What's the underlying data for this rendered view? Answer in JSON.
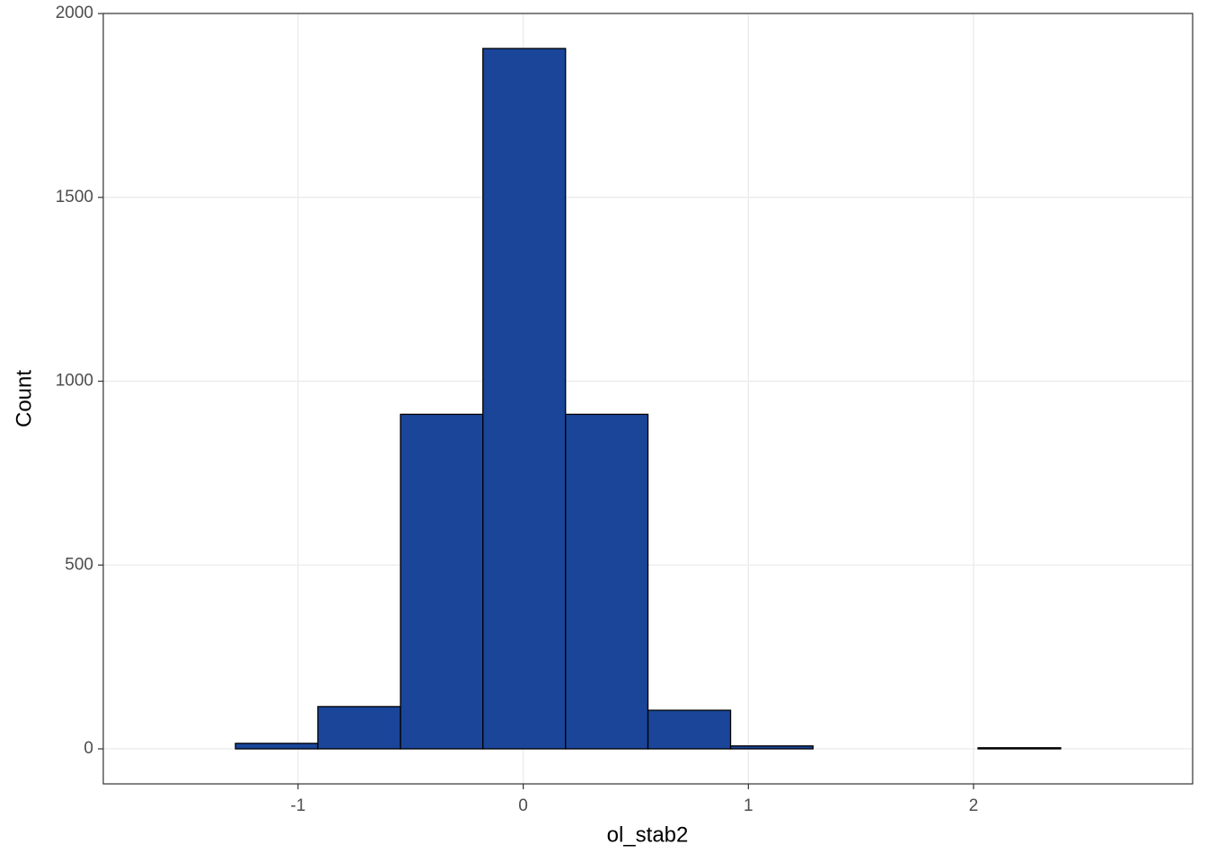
{
  "chart_data": {
    "type": "histogram",
    "x_label": "ol_stab2",
    "y_label": "Count",
    "bins": [
      -1.645,
      -1.278,
      -0.912,
      -0.545,
      -0.179,
      0.188,
      0.554,
      0.921,
      1.287,
      1.654,
      2.02,
      2.387,
      2.753
    ],
    "values": [
      0,
      15,
      115,
      910,
      1905,
      910,
      105,
      8,
      0,
      0,
      3,
      0
    ],
    "color": "#1a4599",
    "edge_color": "#000000",
    "xlim": [
      -1.865,
      2.973
    ],
    "xticks": [
      -1,
      0,
      1,
      2
    ],
    "ylim": [
      -95.25,
      2000.25
    ],
    "yticks": [
      0,
      500,
      1000,
      1500,
      2000
    ],
    "grid": true
  }
}
